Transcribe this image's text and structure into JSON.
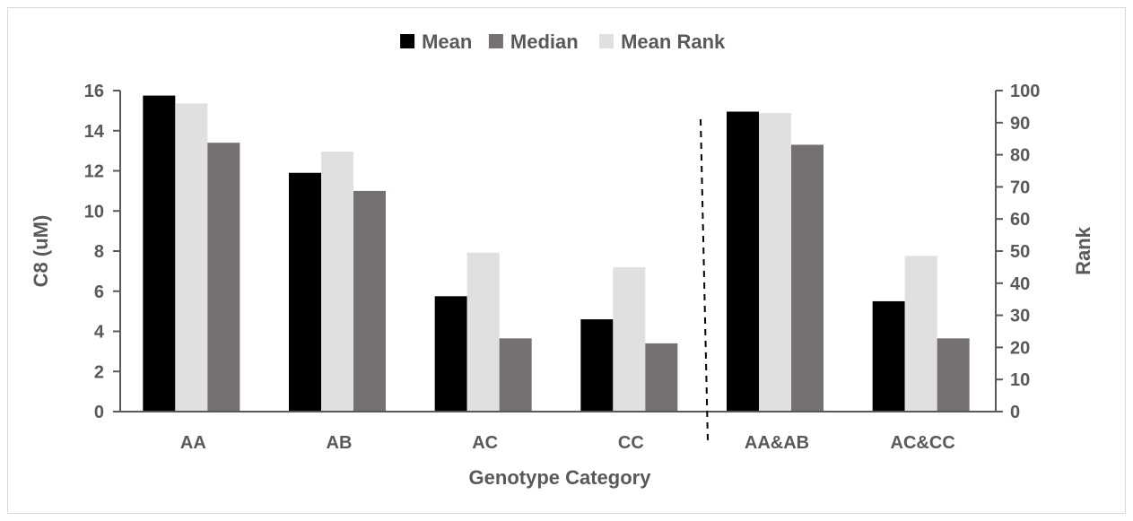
{
  "chart_data": {
    "type": "bar",
    "title": "",
    "xlabel": "Genotype Category",
    "ylabel": "C8 (uM)",
    "y2label": "Rank",
    "ylim": [
      0,
      16
    ],
    "yticks": [
      0,
      2,
      4,
      6,
      8,
      10,
      12,
      14,
      16
    ],
    "y2lim": [
      0,
      100
    ],
    "y2ticks": [
      0,
      10,
      20,
      30,
      40,
      50,
      60,
      70,
      80,
      90,
      100
    ],
    "categories": [
      "AA",
      "AB",
      "AC",
      "CC",
      "AA&AB",
      "AC&CC"
    ],
    "series": [
      {
        "name": "Mean",
        "axis": "left",
        "color": "#000000",
        "values": [
          15.75,
          11.9,
          5.75,
          4.6,
          14.95,
          5.5
        ]
      },
      {
        "name": "Median",
        "axis": "left",
        "color": "#767171",
        "values": [
          13.4,
          11.0,
          3.65,
          3.4,
          13.3,
          3.65
        ]
      },
      {
        "name": "Mean Rank",
        "axis": "right",
        "color": "#e0e0e0",
        "values": [
          96,
          81,
          49.5,
          45,
          93,
          48.5
        ]
      }
    ],
    "bar_order": [
      "Mean",
      "Mean Rank",
      "Median"
    ],
    "legend": "top",
    "grid": false,
    "separator": "dashed vertical line between CC and AA&AB",
    "axis_color": "#595959"
  }
}
